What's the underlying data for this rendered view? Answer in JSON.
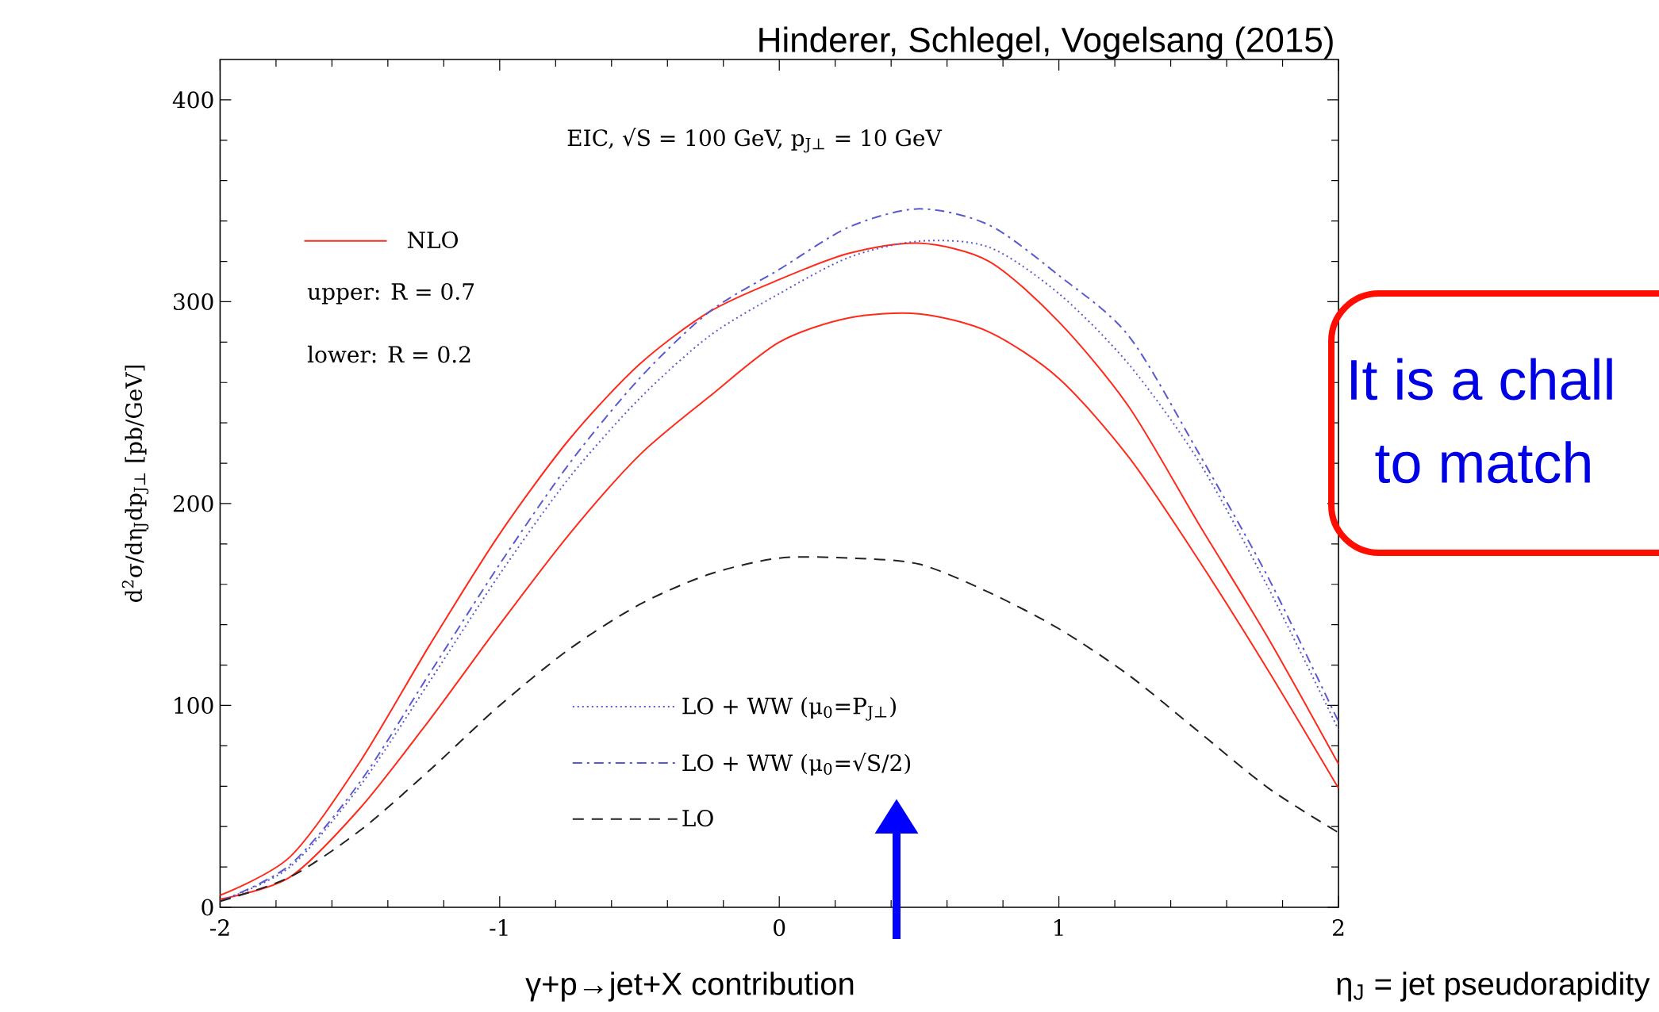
{
  "chart_data": {
    "type": "line",
    "title": "Hinderer, Schlegel, Vogelsang (2015)",
    "subtitle": "EIC, √S = 100 GeV, p$_{J⊥}$ = 10 GeV",
    "xlabel": "η$_{J}$ = jet pseudorapidity",
    "ylabel": "d$^{2}$σ/dη$_{J}$dp$_{J⊥}$ [pb/GeV]",
    "x": [
      -2,
      -1.75,
      -1.5,
      -1.25,
      -1,
      -0.75,
      -0.5,
      -0.25,
      0,
      0.25,
      0.5,
      0.75,
      1,
      1.25,
      1.5,
      1.75,
      2
    ],
    "series": [
      {
        "name": "NLO",
        "color": "#ff2a1a",
        "line_style": "solid",
        "values": [
          6,
          25,
          72,
          130,
          185,
          232,
          269,
          295,
          311,
          324,
          329,
          320,
          290,
          248,
          190,
          133,
          71
        ]
      },
      {
        "color": "#ff2a1a",
        "line_style": "solid",
        "values": [
          4,
          15,
          49,
          93,
          140,
          185,
          224,
          253,
          280,
          292,
          294,
          285,
          262,
          223,
          172,
          117,
          59
        ]
      },
      {
        "name": "LO + WW (μ$_{0}$=P$_{J⊥}$)",
        "color": "#5a5ad0",
        "line_style": "dotted",
        "values": [
          3,
          20,
          60,
          112,
          165,
          213,
          252,
          283,
          304,
          322,
          330,
          327,
          304,
          269,
          221,
          158,
          88
        ]
      },
      {
        "name": "LO + WW (μ$_{0}$=√S/2)",
        "color": "#5a5ad0",
        "line_style": "dashdot",
        "values": [
          3,
          21,
          62,
          116,
          170,
          220,
          262,
          295,
          316,
          337,
          346,
          338,
          313,
          283,
          225,
          163,
          92
        ]
      },
      {
        "name": "LO",
        "color": "#222222",
        "line_style": "dashed",
        "values": [
          3,
          15,
          38,
          68,
          100,
          128,
          150,
          165,
          173,
          173,
          170,
          156,
          138,
          115,
          87,
          59,
          37
        ]
      }
    ],
    "xlim": [
      -2,
      2
    ],
    "ylim": [
      0,
      420
    ],
    "xticks": [
      -2,
      -1,
      0,
      1,
      2
    ],
    "yticks": [
      0,
      100,
      200,
      300,
      400
    ],
    "legend": "bottom",
    "annotations": [
      "upper: R = 0.7",
      "lower: R = 0.2",
      "γ+p→jet+X contribution",
      "It is a chall",
      "to match"
    ]
  }
}
